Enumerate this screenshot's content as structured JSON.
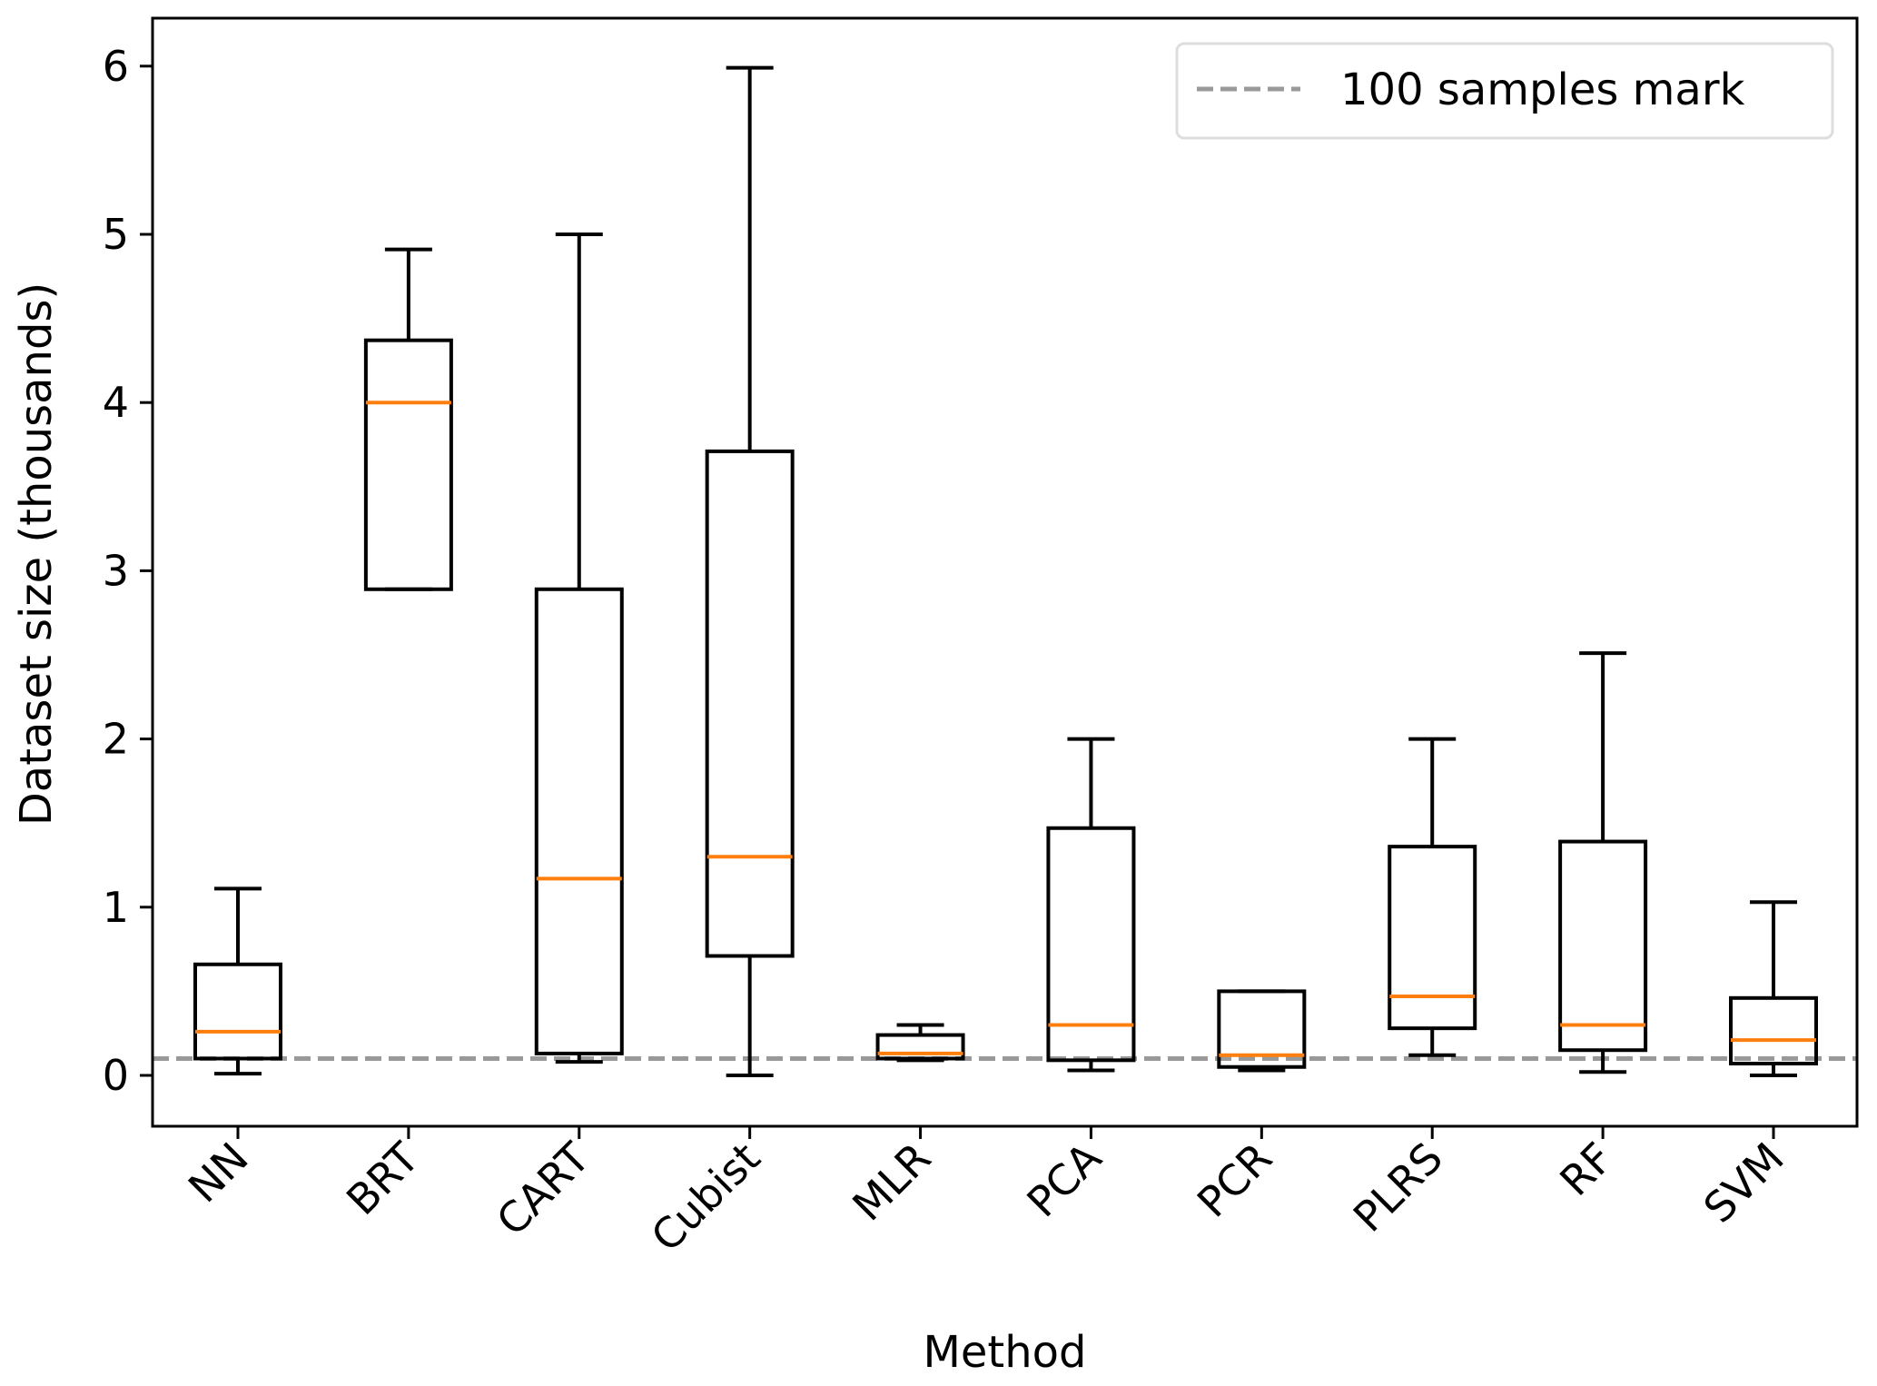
{
  "chart_data": {
    "type": "box",
    "title": "",
    "xlabel": "Method",
    "ylabel": "Dataset size (thousands)",
    "ylim": [
      -0.3,
      6.25
    ],
    "yticks": [
      0,
      1,
      2,
      3,
      4,
      5,
      6
    ],
    "ytick_labels": [
      "0",
      "1",
      "2",
      "3",
      "4",
      "5",
      "6"
    ],
    "grid": false,
    "categories": [
      "NN",
      "BRT",
      "CART",
      "Cubist",
      "MLR",
      "PCA",
      "PCR",
      "PLRS",
      "RF",
      "SVM"
    ],
    "series": [
      {
        "name": "NN",
        "whisker_low": 0.01,
        "q1": 0.1,
        "median": 0.26,
        "q3": 0.66,
        "whisker_high": 1.11
      },
      {
        "name": "BRT",
        "whisker_low": 2.89,
        "q1": 2.89,
        "median": 4.0,
        "q3": 4.37,
        "whisker_high": 4.91
      },
      {
        "name": "CART",
        "whisker_low": 0.08,
        "q1": 0.13,
        "median": 1.17,
        "q3": 2.89,
        "whisker_high": 5.0
      },
      {
        "name": "Cubist",
        "whisker_low": 0.0,
        "q1": 0.71,
        "median": 1.3,
        "q3": 3.71,
        "whisker_high": 5.99
      },
      {
        "name": "MLR",
        "whisker_low": 0.09,
        "q1": 0.1,
        "median": 0.13,
        "q3": 0.24,
        "whisker_high": 0.3
      },
      {
        "name": "PCA",
        "whisker_low": 0.03,
        "q1": 0.09,
        "median": 0.3,
        "q3": 1.47,
        "whisker_high": 2.0
      },
      {
        "name": "PCR",
        "whisker_low": 0.03,
        "q1": 0.05,
        "median": 0.12,
        "q3": 0.5,
        "whisker_high": 0.5
      },
      {
        "name": "PLRS",
        "whisker_low": 0.12,
        "q1": 0.28,
        "median": 0.47,
        "q3": 1.36,
        "whisker_high": 2.0
      },
      {
        "name": "RF",
        "whisker_low": 0.02,
        "q1": 0.15,
        "median": 0.3,
        "q3": 1.39,
        "whisker_high": 2.51
      },
      {
        "name": "SVM",
        "whisker_low": 0.0,
        "q1": 0.07,
        "median": 0.21,
        "q3": 0.46,
        "whisker_high": 1.03
      }
    ],
    "reference_line": {
      "label": "100 samples mark",
      "value": 0.1,
      "style": "dashed",
      "color": "#999999"
    },
    "legend": {
      "entries": [
        "100 samples mark"
      ],
      "position": "top-right"
    },
    "colors": {
      "box": "#000000",
      "median": "#ff7f0e",
      "reference": "#999999",
      "legend_border": "#dddddd"
    },
    "xtick_rotation_deg": 45
  }
}
